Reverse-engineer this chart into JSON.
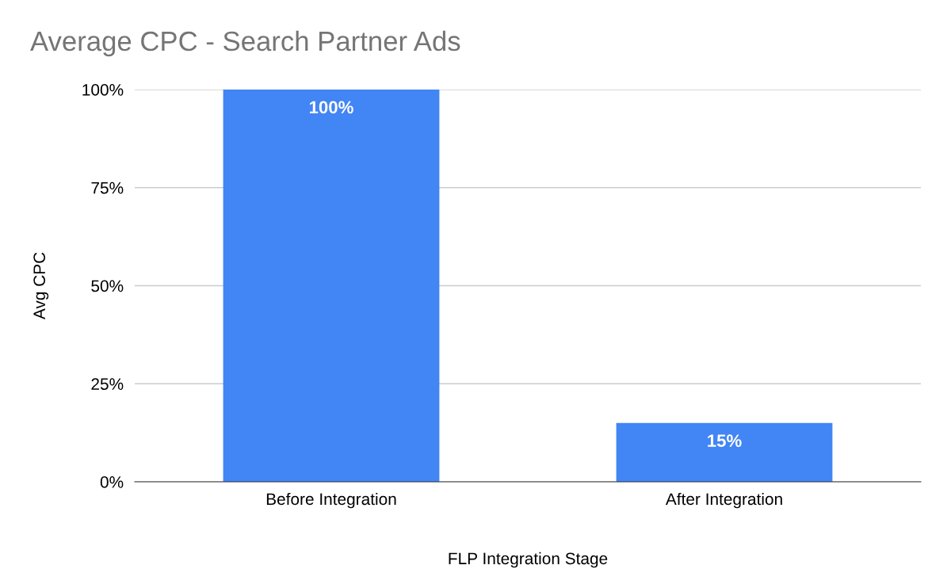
{
  "chart_data": {
    "type": "bar",
    "title": "Average CPC - Search Partner Ads",
    "xlabel": "FLP Integration Stage",
    "ylabel": "Avg CPC",
    "categories": [
      "Before Integration",
      "After Integration"
    ],
    "values": [
      100,
      15
    ],
    "value_labels": [
      "100%",
      "15%"
    ],
    "color": "#4285f4",
    "ylim": [
      0,
      100
    ],
    "yticks": [
      {
        "value": 0,
        "label": "0%"
      },
      {
        "value": 25,
        "label": "25%"
      },
      {
        "value": 50,
        "label": "50%"
      },
      {
        "value": 75,
        "label": "75%"
      },
      {
        "value": 100,
        "label": "100%"
      }
    ],
    "grid": "y",
    "legend": false
  }
}
